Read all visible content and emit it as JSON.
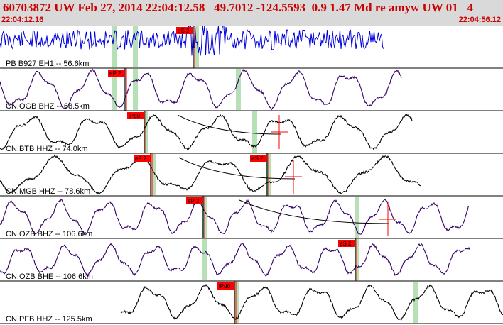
{
  "header": {
    "title": "60703872 UW Feb 27, 2014 22:04:12.58   49.7012 -124.5593  0.9 1.47 Md re amyw UW 01   4",
    "start_time": "22:04:12.16",
    "end_time": "22:04:56.12"
  },
  "colors": {
    "header_bg": "#d9d9d9",
    "header_text": "#cc0000",
    "pick_flag": "#ff0000",
    "window_band": "#b7e0b7",
    "trace_blue": "#0000dd",
    "trace_purple": "#330066",
    "trace_black": "#000000"
  },
  "traces": [
    {
      "label": "PB B927 EH1 -- 56.6km",
      "type": "noise",
      "color": "#0000dd",
      "end": 540,
      "amp": 14,
      "period": 0,
      "seed": 11,
      "bands": [
        160,
        190,
        276
      ],
      "picks": [
        {
          "text": "eS 2",
          "x": 272
        }
      ],
      "arrivals": [],
      "markers": []
    },
    {
      "label": "CN.OGB BHZ -- 68.5km",
      "type": "wave",
      "color": "#330066",
      "end": 565,
      "amp": 25,
      "period": 72,
      "seed": 23,
      "bands": [
        160,
        190,
        335
      ],
      "picks": [
        {
          "text": "eP 2",
          "x": 176
        }
      ],
      "arrivals": [],
      "markers": []
    },
    {
      "label": "CN.BTB HHZ -- 74.0km",
      "type": "wave",
      "color": "#000000",
      "end": 580,
      "amp": 22,
      "period": 88,
      "seed": 37,
      "bands": [
        205,
        358
      ],
      "picks": [
        {
          "text": "iPd0",
          "x": 203
        }
      ],
      "arrivals": [
        {
          "x0": 250,
          "x1": 395,
          "y": 0.05
        }
      ],
      "markers": [
        {
          "x": 393,
          "y": 0.0
        }
      ]
    },
    {
      "label": "CN.MGB HHZ -- 78.6km",
      "type": "wave",
      "color": "#000000",
      "end": 592,
      "amp": 24,
      "period": 115,
      "seed": 41,
      "bands": [
        215,
        378
      ],
      "picks": [
        {
          "text": "eP 2",
          "x": 212
        },
        {
          "text": "eS 2",
          "x": 376
        }
      ],
      "arrivals": [
        {
          "x0": 252,
          "x1": 415,
          "y": 0.1
        }
      ],
      "markers": [
        {
          "x": 413,
          "y": 0.05
        }
      ]
    },
    {
      "label": "CN.OZB BHZ -- 106.6km",
      "type": "wave",
      "color": "#330066",
      "end": 660,
      "amp": 22,
      "period": 65,
      "seed": 53,
      "bands": [
        287,
        502
      ],
      "picks": [
        {
          "text": "eP 2",
          "x": 286
        }
      ],
      "arrivals": [
        {
          "x0": 337,
          "x1": 547,
          "y": 0.15
        }
      ],
      "markers": [
        {
          "x": 546,
          "y": 0.05
        }
      ]
    },
    {
      "label": "CN.OZB BHE -- 106.6km",
      "type": "wave",
      "color": "#330066",
      "end": 662,
      "amp": 20,
      "period": 62,
      "seed": 67,
      "bands": [
        287,
        502
      ],
      "picks": [
        {
          "text": "eS 2",
          "x": 500
        }
      ],
      "arrivals": [],
      "markers": []
    },
    {
      "label": "CN.PFB HHZ -- 125.5km",
      "type": "wave",
      "color": "#000000",
      "end": 708,
      "amp": 22,
      "period": 78,
      "seed": 79,
      "bands": [
        332,
        585
      ],
      "picks": [
        {
          "text": "iPd0",
          "x": 330
        }
      ],
      "arrivals": [],
      "markers": []
    }
  ]
}
